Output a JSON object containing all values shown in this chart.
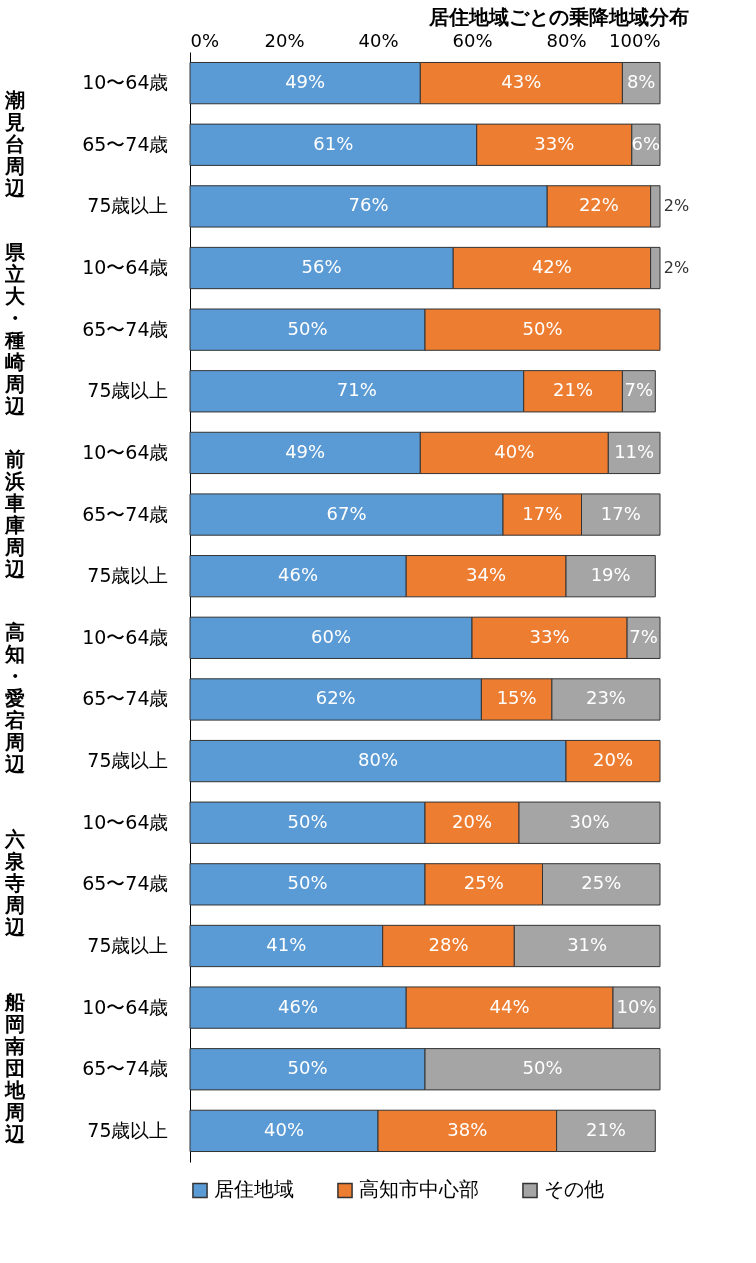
{
  "chart_data": {
    "type": "bar",
    "orientation": "horizontal",
    "stacked": true,
    "title": "居住地域ごとの乗降地域分布",
    "categories": [
      "10〜64歳",
      "65〜74歳",
      "75歳以上",
      "10〜64歳",
      "65〜74歳",
      "75歳以上",
      "10〜64歳",
      "65〜74歳",
      "75歳以上",
      "10〜64歳",
      "65〜74歳",
      "75歳以上",
      "10〜64歳",
      "65〜74歳",
      "75歳以上",
      "10〜64歳",
      "65〜74歳",
      "75歳以上"
    ],
    "annotations": [
      "潮見台周辺",
      "県立大・種崎周辺",
      "前浜車庫周辺",
      "高知・愛宕周辺",
      "六泉寺周辺",
      "船岡南団地周辺"
    ],
    "series": [
      {
        "name": "居住地域",
        "color": "#5b9bd5",
        "values": [
          49,
          61,
          76,
          56,
          50,
          71,
          49,
          66.6,
          46,
          60,
          62,
          80,
          50,
          50,
          41,
          46,
          50,
          40
        ],
        "value_labels": [
          "49%",
          "61%",
          "76%",
          "56%",
          "50%",
          "71%",
          "49%",
          "67%",
          "46%",
          "60%",
          "62%",
          "80%",
          "50%",
          "50%",
          "41%",
          "46%",
          "50%",
          "40%"
        ]
      },
      {
        "name": "高知市中心部",
        "color": "#ed7d31",
        "values": [
          43,
          33,
          22,
          42,
          50,
          21,
          40,
          16.7,
          34,
          33,
          15,
          20,
          20,
          25,
          28,
          44,
          null,
          38
        ],
        "value_labels": [
          "43%",
          "33%",
          "22%",
          "42%",
          "50%",
          "21%",
          "40%",
          "17%",
          "34%",
          "33%",
          "15%",
          "20%",
          "20%",
          "25%",
          "28%",
          "44%",
          null,
          "38%"
        ]
      },
      {
        "name": "その他",
        "color": "#a5a5a5",
        "values": [
          8,
          6,
          2,
          2,
          null,
          7,
          11,
          16.7,
          19,
          7,
          23,
          null,
          30,
          25,
          31,
          10,
          50,
          21
        ],
        "value_labels": [
          "8%",
          "6%",
          "2%",
          "2%",
          null,
          "7%",
          "11%",
          "17%",
          "19%",
          "7%",
          "23%",
          null,
          "30%",
          "25%",
          "31%",
          "10%",
          "50%",
          "21%"
        ]
      }
    ],
    "xlim": [
      0,
      100
    ],
    "xticks": [
      {
        "value": 0,
        "label": "0%"
      },
      {
        "value": 20,
        "label": "20%"
      },
      {
        "value": 40,
        "label": "40%"
      },
      {
        "value": 60,
        "label": "60%"
      },
      {
        "value": 80,
        "label": "80%"
      },
      {
        "value": 100,
        "label": "100%"
      }
    ],
    "grid": false,
    "legend": "bottom"
  }
}
